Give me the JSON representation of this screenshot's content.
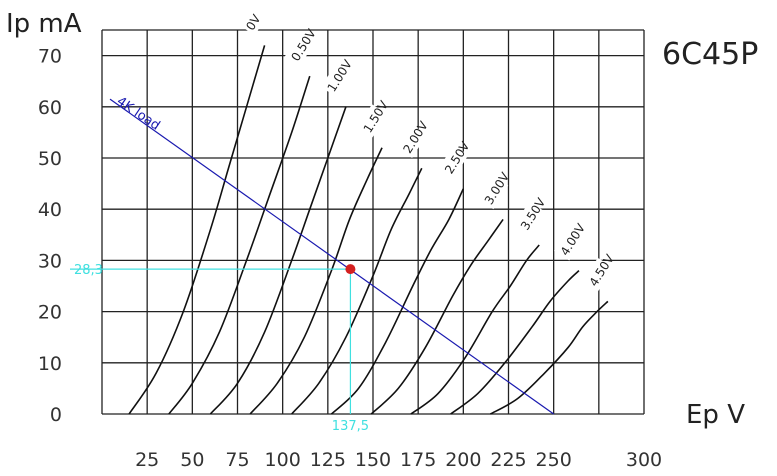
{
  "chart_data": {
    "type": "line",
    "title": "6C45P",
    "xlabel": "Ep V",
    "ylabel": "Ip mA",
    "xlim": [
      0,
      300
    ],
    "ylim": [
      0,
      75
    ],
    "grid": true,
    "x_ticks": [
      "25",
      "50",
      "75",
      "100",
      "125",
      "150",
      "175",
      "200",
      "225",
      "250",
      "300"
    ],
    "y_ticks": [
      "0",
      "10",
      "20",
      "30",
      "40",
      "50",
      "60",
      "70"
    ],
    "series": [
      {
        "name": "0V",
        "x": [
          15,
          30,
          45,
          60,
          70,
          80,
          90
        ],
        "y": [
          0,
          8,
          20,
          36,
          48,
          60,
          72
        ]
      },
      {
        "name": "0.50V",
        "x": [
          37,
          50,
          65,
          80,
          92,
          105,
          115
        ],
        "y": [
          0,
          6,
          16,
          30,
          42,
          55,
          66
        ]
      },
      {
        "name": "1.00V",
        "x": [
          60,
          75,
          90,
          105,
          115,
          125,
          135
        ],
        "y": [
          0,
          6,
          16,
          30,
          40,
          50,
          60
        ]
      },
      {
        "name": "1.50V",
        "x": [
          82,
          97,
          112,
          127,
          137,
          147,
          155
        ],
        "y": [
          0,
          6,
          15,
          28,
          38,
          46,
          52
        ]
      },
      {
        "name": "2.00V",
        "x": [
          105,
          120,
          135,
          150,
          160,
          170,
          177
        ],
        "y": [
          0,
          6,
          15,
          27,
          36,
          43,
          48
        ]
      },
      {
        "name": "2.50V",
        "x": [
          127,
          142,
          157,
          172,
          182,
          192,
          200
        ],
        "y": [
          0,
          5,
          14,
          25,
          32,
          38,
          44
        ]
      },
      {
        "name": "3.00V",
        "x": [
          149,
          164,
          179,
          194,
          204,
          214,
          222
        ],
        "y": [
          0,
          5,
          13,
          23,
          29,
          34,
          38
        ]
      },
      {
        "name": "3.50V",
        "x": [
          171,
          186,
          201,
          216,
          226,
          235,
          242
        ],
        "y": [
          0,
          4,
          11,
          20,
          25,
          30,
          33
        ]
      },
      {
        "name": "4.00V",
        "x": [
          193,
          208,
          223,
          238,
          248,
          258,
          264
        ],
        "y": [
          0,
          4,
          10,
          17,
          22,
          26,
          28
        ]
      },
      {
        "name": "4.50V",
        "x": [
          215,
          230,
          245,
          258,
          266,
          274,
          280
        ],
        "y": [
          0,
          3,
          8,
          13,
          17,
          20,
          22
        ]
      }
    ],
    "load_line": {
      "label": "4K load",
      "x": [
        0,
        250
      ],
      "y": [
        61.5,
        0
      ],
      "color": "#1a1ab0"
    },
    "operating_point": {
      "x": 137.5,
      "y": 28.3,
      "x_label": "137,5",
      "y_label": "28,3",
      "color": "#d42020",
      "guide_color": "#40e0e0"
    }
  }
}
